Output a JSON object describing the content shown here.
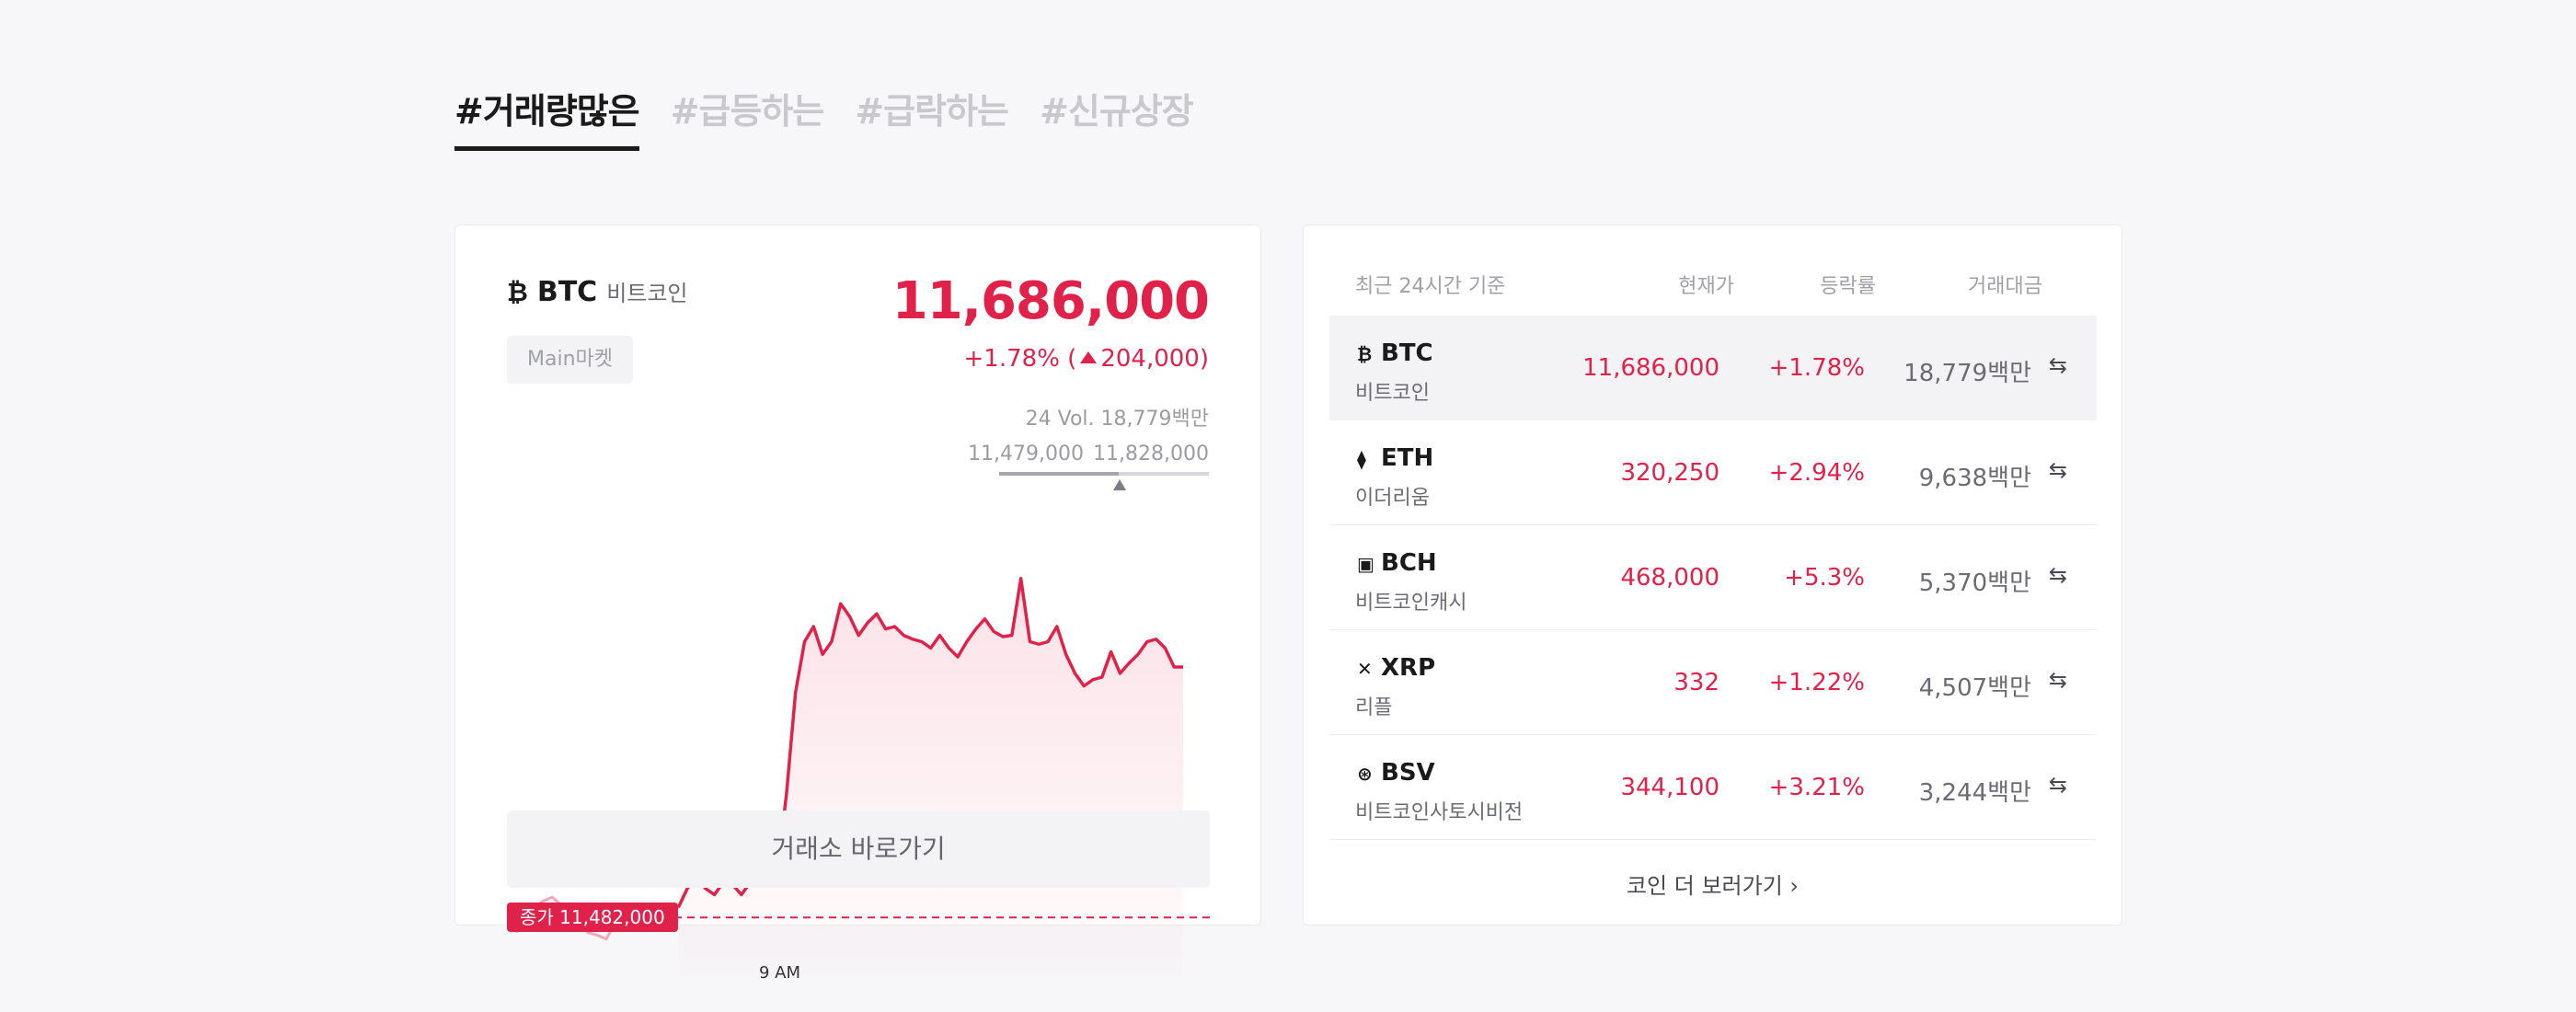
{
  "tabs": [
    "#거래량많은",
    "#급등하는",
    "#급락하는",
    "#신규상장"
  ],
  "featured": {
    "glyph": "₿",
    "symbol": "BTC",
    "name": "비트코인",
    "market_badge": "Main마켓",
    "price": "11,686,000",
    "change_pct": "+1.78%",
    "change_open": "(",
    "change_amt": "204,000)",
    "volume": "24 Vol. 18,779백만",
    "range_low": "11,479,000",
    "range_high": "11,828,000",
    "close_label": "종가 11,482,000",
    "time_label": "9 AM",
    "go_button": "거래소 바로가기"
  },
  "chart_data": {
    "type": "line",
    "values": [
      11470000,
      11485000,
      11490000,
      11495000,
      11498000,
      11492000,
      11486000,
      11478000,
      11470000,
      11468000,
      11465000,
      11478000,
      11480000,
      11484000,
      11478000,
      11490000,
      11486000,
      11484000,
      11490000,
      11505000,
      11515000,
      11505000,
      11500000,
      11510000,
      11508000,
      11500000,
      11510000,
      11512000,
      11508000,
      11520000,
      11580000,
      11660000,
      11700000,
      11712000,
      11690000,
      11700000,
      11730000,
      11720000,
      11705000,
      11715000,
      11722000,
      11710000,
      11712000,
      11705000,
      11702000,
      11700000,
      11695000,
      11705000,
      11695000,
      11688000,
      11700000,
      11710000,
      11718000,
      11708000,
      11704000,
      11705000,
      11750000,
      11700000,
      11698000,
      11700000,
      11712000,
      11690000,
      11675000,
      11665000,
      11670000,
      11672000,
      11692000,
      11675000,
      11683000,
      11690000,
      11700000,
      11702000,
      11695000,
      11680000,
      11680000
    ],
    "reference": 11482000,
    "past_segment_points": 18,
    "color": "#e0224a"
  },
  "table": {
    "headers": [
      "최근 24시간 기준",
      "현재가",
      "등락률",
      "거래대금"
    ],
    "rows": [
      {
        "glyph": "₿",
        "symbol": "BTC",
        "name": "비트코인",
        "price": "11,686,000",
        "change": "+1.78%",
        "volume": "18,779백만",
        "swap": "⇆"
      },
      {
        "glyph": "⧫",
        "symbol": "ETH",
        "name": "이더리움",
        "price": "320,250",
        "change": "+2.94%",
        "volume": "9,638백만",
        "swap": "⇆"
      },
      {
        "glyph": "▣",
        "symbol": "BCH",
        "name": "비트코인캐시",
        "price": "468,000",
        "change": "+5.3%",
        "volume": "5,370백만",
        "swap": "⇆"
      },
      {
        "glyph": "✕",
        "symbol": "XRP",
        "name": "리플",
        "price": "332",
        "change": "+1.22%",
        "volume": "4,507백만",
        "swap": "⇆"
      },
      {
        "glyph": "⊛",
        "symbol": "BSV",
        "name": "비트코인사토시비전",
        "price": "344,100",
        "change": "+3.21%",
        "volume": "3,244백만",
        "swap": "⇆"
      }
    ],
    "more_link": "코인 더 보러가기 ›"
  }
}
